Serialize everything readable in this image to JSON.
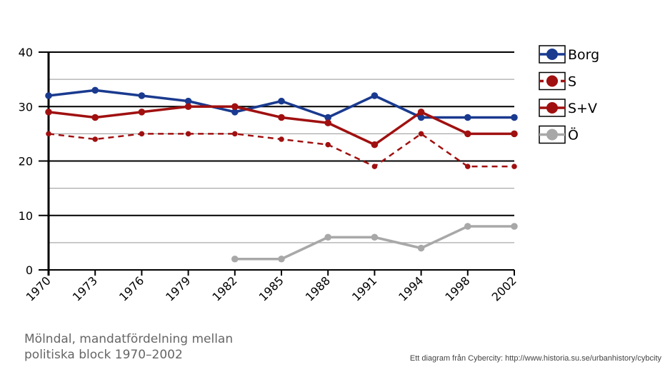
{
  "chart_data": {
    "type": "line",
    "categories": [
      "1970",
      "1973",
      "1976",
      "1979",
      "1982",
      "1985",
      "1988",
      "1991",
      "1994",
      "1998",
      "2002"
    ],
    "ylim": [
      0,
      40
    ],
    "yticks": [
      0,
      10,
      20,
      30,
      40
    ],
    "ygrid_major": [
      10,
      20,
      30,
      40
    ],
    "ygrid_minor": [
      5,
      15,
      25,
      35
    ],
    "series": [
      {
        "name": "Borg",
        "color": "#1a3a8f",
        "dashed": false,
        "values": [
          32,
          33,
          32,
          31,
          29,
          31,
          28,
          32,
          28,
          28,
          28
        ]
      },
      {
        "name": "S",
        "color": "#a01010",
        "dashed": true,
        "values": [
          25,
          24,
          25,
          25,
          25,
          24,
          23,
          19,
          25,
          19,
          19
        ]
      },
      {
        "name": "S+V",
        "color": "#a01010",
        "dashed": false,
        "values": [
          29,
          28,
          29,
          30,
          30,
          28,
          27,
          23,
          29,
          25,
          25
        ]
      },
      {
        "name": "Ö",
        "color": "#a8a8a8",
        "dashed": false,
        "values": [
          null,
          null,
          null,
          null,
          2,
          2,
          6,
          6,
          4,
          8,
          8
        ]
      }
    ],
    "legend_position": "right"
  },
  "caption": "Mölndal, mandatfördelning mellan\npolitiska block 1970–2002",
  "credit": "Ett diagram från Cybercity: http://www.historia.su.se/urbanhistory/cybcity"
}
